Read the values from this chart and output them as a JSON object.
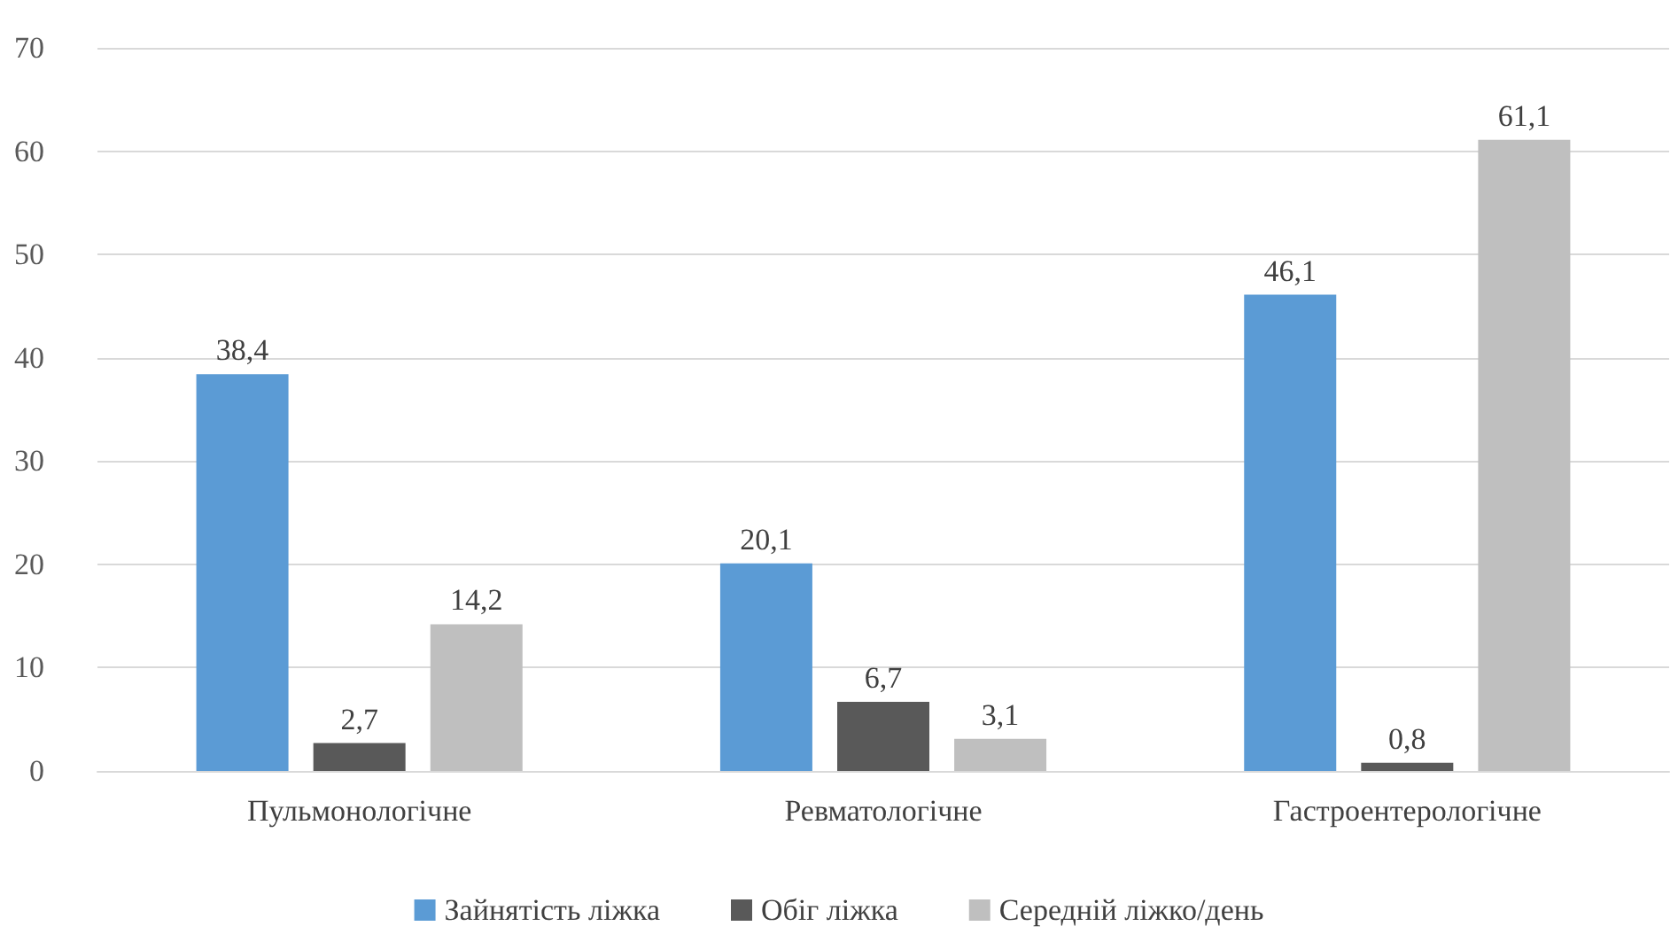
{
  "chart_data": {
    "type": "bar",
    "categories": [
      "Пульмонологічне",
      "Ревматологічне",
      "Гастроентерологічне"
    ],
    "series": [
      {
        "name": "Зайнятість ліжка",
        "color": "#5b9bd5",
        "values": [
          38.4,
          20.1,
          46.1
        ],
        "value_labels": [
          "38,4",
          "20,1",
          "46,1"
        ]
      },
      {
        "name": "Обіг ліжка",
        "color": "#595959",
        "values": [
          2.7,
          6.7,
          0.8
        ],
        "value_labels": [
          "2,7",
          "6,7",
          "0,8"
        ]
      },
      {
        "name": "Середній ліжко/день",
        "color": "#bfbfbf",
        "values": [
          14.2,
          3.1,
          61.1
        ],
        "value_labels": [
          "14,2",
          "3,1",
          "61,1"
        ]
      }
    ],
    "ylim": [
      0,
      70
    ],
    "yticks": [
      0,
      10,
      20,
      30,
      40,
      50,
      60,
      70
    ],
    "grid": "y",
    "legend": "bottom"
  }
}
